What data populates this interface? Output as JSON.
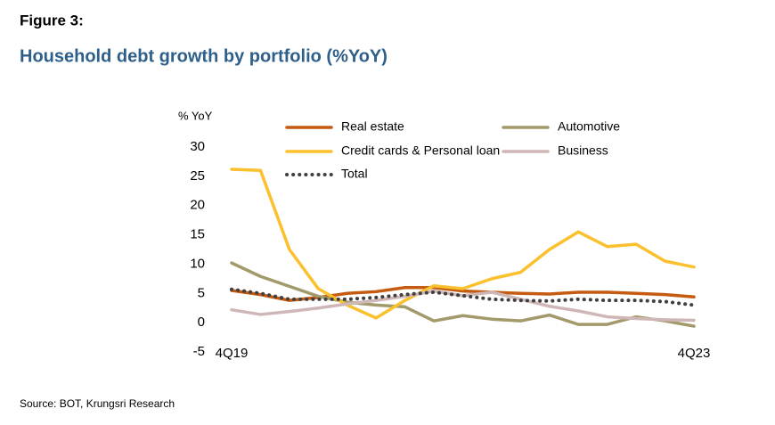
{
  "page": {
    "figure": "Figure 3:",
    "source": "Source: BOT, Krungsri Research"
  },
  "chart_data": {
    "type": "line",
    "title": "Household debt growth by portfolio (%YoY)",
    "y_label": "% YoY",
    "categories": [
      "4Q19",
      null,
      null,
      null,
      null,
      null,
      null,
      null,
      null,
      null,
      null,
      null,
      null,
      null,
      null,
      null,
      "4Q23"
    ],
    "series": [
      {
        "name": "Real estate",
        "color": "#c55a11",
        "values": [
          5.5,
          4.8,
          3.8,
          4.3,
          5.0,
          5.3,
          6.0,
          6.0,
          5.4,
          5.2,
          5.0,
          4.9,
          5.2,
          5.2,
          5.0,
          4.8,
          4.4
        ]
      },
      {
        "name": "Automotive",
        "color": "#a29a6a",
        "values": [
          10.2,
          7.9,
          6.2,
          4.5,
          3.5,
          3.0,
          2.7,
          0.3,
          1.2,
          0.6,
          0.3,
          1.3,
          -0.3,
          -0.3,
          1.0,
          0.3,
          -0.6
        ]
      },
      {
        "name": "Credit cards & Personal loan",
        "color": "#fbc02d",
        "values": [
          26.2,
          26.0,
          12.5,
          5.8,
          3.0,
          0.8,
          3.8,
          6.3,
          5.8,
          7.5,
          8.6,
          12.5,
          15.5,
          13.0,
          13.4,
          10.5,
          9.5
        ]
      },
      {
        "name": "Business",
        "color": "#cfb7b7",
        "values": [
          2.2,
          1.4,
          1.9,
          2.5,
          3.2,
          3.8,
          4.5,
          5.4,
          4.6,
          5.2,
          4.0,
          2.8,
          2.0,
          1.0,
          0.7,
          0.5,
          0.4
        ]
      },
      {
        "name": "Total",
        "color": "#404040",
        "dotted": true,
        "values": [
          5.7,
          5.0,
          4.0,
          4.0,
          4.0,
          4.3,
          4.8,
          5.2,
          4.6,
          4.0,
          3.8,
          3.7,
          4.0,
          3.8,
          3.8,
          3.6,
          3.0
        ]
      }
    ],
    "ylim": [
      -5,
      30
    ],
    "yticks": [
      -5,
      0,
      5,
      10,
      15,
      20,
      25,
      30
    ],
    "grid": false
  }
}
